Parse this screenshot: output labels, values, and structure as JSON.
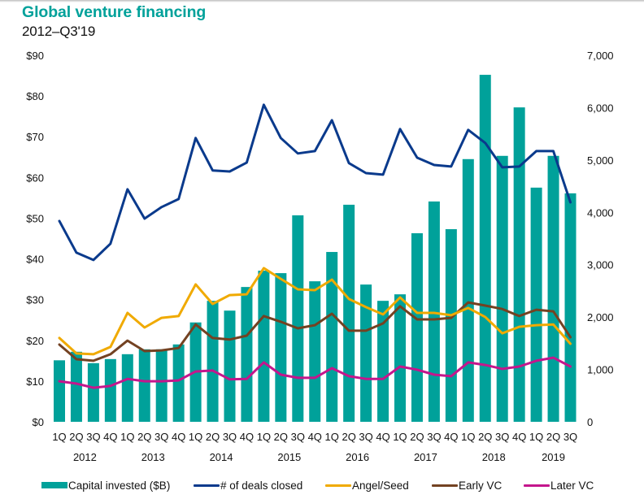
{
  "title": "Global venture financing",
  "subtitle": "2012–Q3'19",
  "colors": {
    "capital": "#00a19a",
    "deals": "#0a3a8c",
    "angel": "#f0aa00",
    "early": "#734222",
    "later": "#c4168c"
  },
  "chart_data": {
    "type": "bar",
    "title": "Global venture financing",
    "subtitle": "2012–Q3'19",
    "xlabel": "",
    "ylabel": "",
    "y_left": {
      "ylim": [
        0,
        90
      ],
      "ticks": [
        0,
        10,
        20,
        30,
        40,
        50,
        60,
        70,
        80,
        90
      ],
      "tick_labels": [
        "$0",
        "$10",
        "$20",
        "$30",
        "$40",
        "$50",
        "$60",
        "$70",
        "$80",
        "$90"
      ]
    },
    "y_right": {
      "ylim": [
        0,
        7000
      ],
      "ticks": [
        0,
        1000,
        2000,
        3000,
        4000,
        5000,
        6000,
        7000
      ],
      "tick_labels": [
        "0",
        "1,000",
        "2,000",
        "3,000",
        "4,000",
        "5,000",
        "6,000",
        "7,000"
      ]
    },
    "grid": false,
    "legend_position": "bottom",
    "categories": [
      "1Q",
      "2Q",
      "3Q",
      "4Q",
      "1Q",
      "2Q",
      "3Q",
      "4Q",
      "1Q",
      "2Q",
      "3Q",
      "4Q",
      "1Q",
      "2Q",
      "3Q",
      "4Q",
      "1Q",
      "2Q",
      "3Q",
      "4Q",
      "1Q",
      "2Q",
      "3Q",
      "4Q",
      "1Q",
      "2Q",
      "3Q",
      "4Q",
      "1Q",
      "2Q",
      "3Q"
    ],
    "year_groups": [
      {
        "label": "2012",
        "start": 0,
        "count": 4
      },
      {
        "label": "2013",
        "start": 4,
        "count": 4
      },
      {
        "label": "2014",
        "start": 8,
        "count": 4
      },
      {
        "label": "2015",
        "start": 12,
        "count": 4
      },
      {
        "label": "2016",
        "start": 16,
        "count": 4
      },
      {
        "label": "2017",
        "start": 20,
        "count": 4
      },
      {
        "label": "2018",
        "start": 24,
        "count": 4
      },
      {
        "label": "2019",
        "start": 28,
        "count": 3
      }
    ],
    "series": [
      {
        "name": "Capital invested ($B)",
        "type": "bar",
        "axis": "left",
        "color_key": "capital",
        "values": [
          15.1,
          17.2,
          14.4,
          15.4,
          16.6,
          17.8,
          17.8,
          19.0,
          24.4,
          29.7,
          27.3,
          33.1,
          37.1,
          36.5,
          50.7,
          34.5,
          41.7,
          53.3,
          33.7,
          29.7,
          31.3,
          46.3,
          54.1,
          47.3,
          64.5,
          85.2,
          65.3,
          77.2,
          57.5,
          65.3,
          56.1
        ]
      },
      {
        "name": "# of deals closed",
        "type": "line",
        "axis": "right",
        "color_key": "deals",
        "values": [
          3835,
          3230,
          3090,
          3400,
          4440,
          3880,
          4100,
          4255,
          5420,
          4800,
          4780,
          4950,
          6055,
          5420,
          5125,
          5170,
          5760,
          4940,
          4750,
          4720,
          5590,
          5045,
          4905,
          4875,
          5575,
          5325,
          4860,
          4875,
          5170,
          5170,
          4190
        ]
      },
      {
        "name": "Angel/Seed",
        "type": "line",
        "axis": "right",
        "color_key": "angel",
        "values": [
          1600,
          1305,
          1290,
          1430,
          2080,
          1800,
          1985,
          2020,
          2625,
          2250,
          2420,
          2435,
          2935,
          2730,
          2530,
          2515,
          2715,
          2345,
          2190,
          2050,
          2375,
          2080,
          2080,
          2035,
          2175,
          2000,
          1690,
          1815,
          1845,
          1860,
          1490
        ]
      },
      {
        "name": "Early VC",
        "type": "line",
        "axis": "right",
        "color_key": "early",
        "values": [
          1475,
          1195,
          1165,
          1290,
          1550,
          1350,
          1365,
          1410,
          1860,
          1600,
          1570,
          1645,
          2020,
          1910,
          1785,
          1845,
          2065,
          1740,
          1740,
          1880,
          2205,
          1955,
          1955,
          1985,
          2280,
          2220,
          2155,
          2020,
          2140,
          2110,
          1615
        ]
      },
      {
        "name": "Later VC",
        "type": "line",
        "axis": "right",
        "color_key": "later",
        "values": [
          775,
          730,
          650,
          685,
          820,
          775,
          775,
          790,
          960,
          980,
          810,
          820,
          1135,
          900,
          840,
          840,
          1025,
          870,
          820,
          820,
          1055,
          995,
          900,
          870,
          1135,
          1085,
          1010,
          1055,
          1165,
          1225,
          1055
        ]
      }
    ]
  },
  "legend": [
    {
      "label": "Capital invested ($B)",
      "kind": "bar",
      "color_key": "capital"
    },
    {
      "label": "# of deals closed",
      "kind": "line",
      "color_key": "deals"
    },
    {
      "label": "Angel/Seed",
      "kind": "line",
      "color_key": "angel"
    },
    {
      "label": "Early VC",
      "kind": "line",
      "color_key": "early"
    },
    {
      "label": "Later VC",
      "kind": "line",
      "color_key": "later"
    }
  ]
}
